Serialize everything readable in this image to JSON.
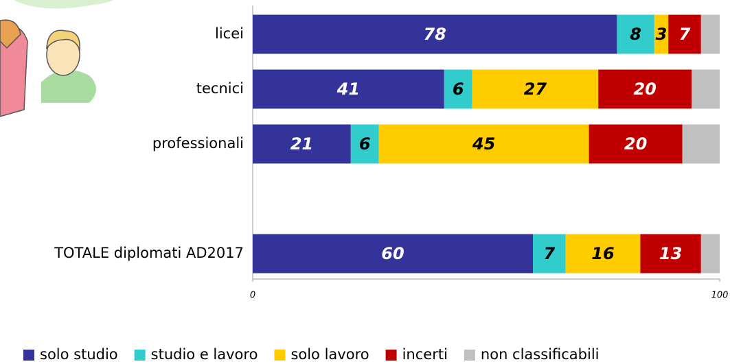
{
  "chart_data": {
    "type": "stacked-barh",
    "categories": [
      "licei",
      "tecnici",
      "professionali",
      null,
      "TOTALE diplomati AD2017"
    ],
    "series": [
      {
        "name": "solo studio",
        "color": "#333399",
        "label_color": "#ffffff",
        "values": [
          78,
          41,
          21,
          null,
          60
        ]
      },
      {
        "name": "studio e lavoro",
        "color": "#33cccc",
        "label_color": "#000000",
        "values": [
          8,
          6,
          6,
          null,
          7
        ]
      },
      {
        "name": "solo lavoro",
        "color": "#ffcc00",
        "label_color": "#000000",
        "values": [
          3,
          27,
          45,
          null,
          16
        ]
      },
      {
        "name": "incerti",
        "color": "#c00000",
        "label_color": "#ffffff",
        "values": [
          7,
          20,
          20,
          null,
          13
        ]
      },
      {
        "name": "non classificabili",
        "color": "#c0c0c0",
        "show_values": false,
        "values": [
          4,
          6,
          8,
          null,
          4
        ]
      }
    ],
    "xlim": [
      0,
      100
    ],
    "xticks": [
      0,
      100
    ],
    "legend": "bottom"
  }
}
